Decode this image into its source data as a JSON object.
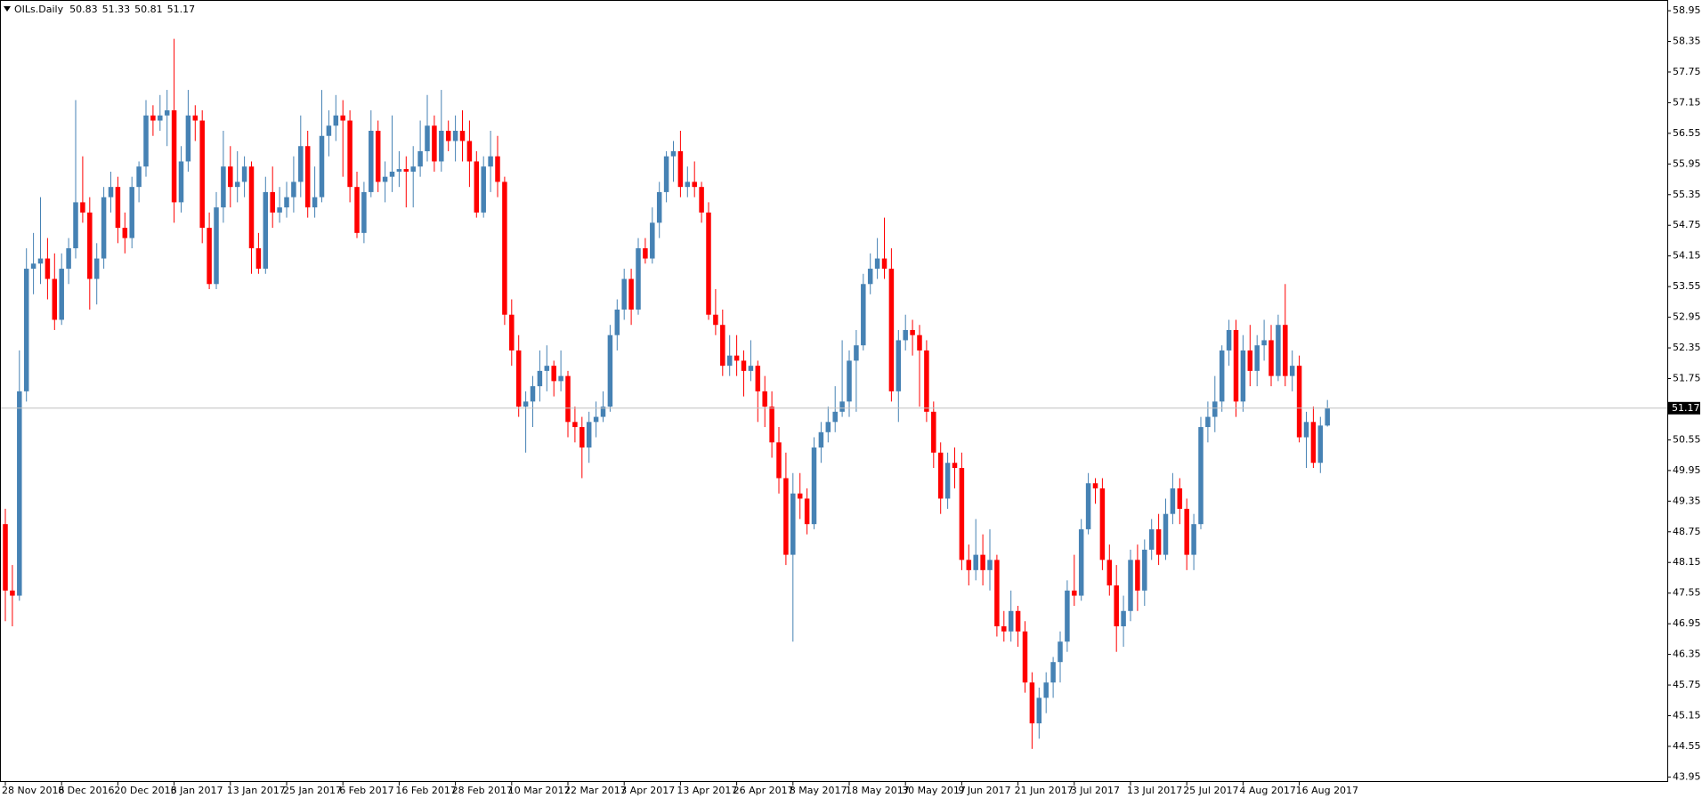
{
  "chart_data": {
    "type": "candlestick",
    "symbol": "OILs.Daily",
    "up_color": "#4682b4",
    "down_color": "#ff0000",
    "current_line_color": "#c0c0c0",
    "ylim": [
      43.87,
      59.16
    ],
    "yticks": [
      43.95,
      44.55,
      45.15,
      45.75,
      46.35,
      46.95,
      47.55,
      48.15,
      48.75,
      49.35,
      49.95,
      50.55,
      51.75,
      52.35,
      52.95,
      53.55,
      54.15,
      54.75,
      55.35,
      55.95,
      56.55,
      57.15,
      57.75,
      58.35,
      58.95
    ],
    "categories": [
      "28 Nov 2016",
      null,
      null,
      null,
      null,
      null,
      null,
      null,
      "8 Dec 2016",
      null,
      null,
      null,
      null,
      null,
      null,
      null,
      "20 Dec 2016",
      null,
      null,
      null,
      null,
      null,
      null,
      null,
      "3 Jan 2017",
      null,
      null,
      null,
      null,
      null,
      null,
      null,
      "13 Jan 2017",
      null,
      null,
      null,
      null,
      null,
      null,
      null,
      "25 Jan 2017",
      null,
      null,
      null,
      null,
      null,
      null,
      null,
      "6 Feb 2017",
      null,
      null,
      null,
      null,
      null,
      null,
      null,
      "16 Feb 2017",
      null,
      null,
      null,
      null,
      null,
      null,
      null,
      "28 Feb 2017",
      null,
      null,
      null,
      null,
      null,
      null,
      null,
      "10 Mar 2017",
      null,
      null,
      null,
      null,
      null,
      null,
      null,
      "22 Mar 2017",
      null,
      null,
      null,
      null,
      null,
      null,
      null,
      "3 Apr 2017",
      null,
      null,
      null,
      null,
      null,
      null,
      null,
      "13 Apr 2017",
      null,
      null,
      null,
      null,
      null,
      null,
      null,
      "26 Apr 2017",
      null,
      null,
      null,
      null,
      null,
      null,
      null,
      "8 May 2017",
      null,
      null,
      null,
      null,
      null,
      null,
      null,
      "18 May 2017",
      null,
      null,
      null,
      null,
      null,
      null,
      null,
      "30 May 2017",
      null,
      null,
      null,
      null,
      null,
      null,
      null,
      "9 Jun 2017",
      null,
      null,
      null,
      null,
      null,
      null,
      null,
      "21 Jun 2017",
      null,
      null,
      null,
      null,
      null,
      null,
      null,
      "3 Jul 2017",
      null,
      null,
      null,
      null,
      null,
      null,
      null,
      "13 Jul 2017",
      null,
      null,
      null,
      null,
      null,
      null,
      null,
      "25 Jul 2017",
      null,
      null,
      null,
      null,
      null,
      null,
      null,
      "4 Aug 2017",
      null,
      null,
      null,
      null,
      null,
      null,
      null,
      "16 Aug 2017",
      null,
      null,
      null,
      null
    ],
    "ohlc": [
      [
        48.9,
        49.2,
        47.0,
        47.6
      ],
      [
        47.6,
        48.1,
        46.9,
        47.5
      ],
      [
        47.5,
        52.3,
        47.4,
        51.5
      ],
      [
        51.5,
        54.3,
        51.3,
        53.9
      ],
      [
        53.9,
        54.6,
        53.4,
        54.0
      ],
      [
        54.0,
        55.3,
        53.6,
        54.1
      ],
      [
        54.1,
        54.5,
        53.3,
        53.7
      ],
      [
        53.7,
        54.2,
        52.7,
        52.9
      ],
      [
        52.9,
        54.2,
        52.8,
        53.9
      ],
      [
        53.9,
        54.5,
        53.6,
        54.3
      ],
      [
        54.3,
        57.2,
        54.1,
        55.2
      ],
      [
        55.2,
        56.1,
        54.8,
        55.0
      ],
      [
        55.0,
        55.3,
        53.1,
        53.7
      ],
      [
        53.7,
        54.4,
        53.2,
        54.1
      ],
      [
        54.1,
        55.5,
        53.9,
        55.3
      ],
      [
        55.3,
        55.8,
        55.0,
        55.5
      ],
      [
        55.5,
        55.7,
        54.4,
        54.7
      ],
      [
        54.7,
        55.0,
        54.2,
        54.5
      ],
      [
        54.5,
        55.7,
        54.3,
        55.5
      ],
      [
        55.5,
        56.0,
        55.2,
        55.9
      ],
      [
        55.9,
        57.2,
        55.7,
        56.9
      ],
      [
        56.9,
        57.1,
        56.5,
        56.8
      ],
      [
        56.8,
        57.3,
        56.6,
        56.9
      ],
      [
        56.9,
        57.4,
        56.3,
        57.0
      ],
      [
        57.0,
        58.4,
        54.8,
        55.2
      ],
      [
        55.2,
        56.3,
        55.0,
        56.0
      ],
      [
        56.0,
        57.4,
        55.8,
        56.9
      ],
      [
        56.9,
        57.1,
        56.4,
        56.8
      ],
      [
        56.8,
        57.0,
        54.4,
        54.7
      ],
      [
        54.7,
        55.0,
        53.5,
        53.6
      ],
      [
        53.6,
        55.4,
        53.5,
        55.1
      ],
      [
        55.1,
        56.6,
        54.8,
        55.9
      ],
      [
        55.9,
        56.3,
        55.1,
        55.5
      ],
      [
        55.5,
        56.2,
        55.2,
        55.6
      ],
      [
        55.6,
        56.1,
        55.3,
        55.9
      ],
      [
        55.9,
        56.0,
        53.8,
        54.3
      ],
      [
        54.3,
        54.6,
        53.8,
        53.9
      ],
      [
        53.9,
        55.7,
        53.8,
        55.4
      ],
      [
        55.4,
        55.9,
        54.7,
        55.0
      ],
      [
        55.0,
        55.5,
        54.8,
        55.1
      ],
      [
        55.1,
        55.6,
        54.9,
        55.3
      ],
      [
        55.3,
        56.1,
        55.0,
        55.6
      ],
      [
        55.6,
        56.9,
        55.3,
        56.3
      ],
      [
        56.3,
        56.6,
        54.9,
        55.1
      ],
      [
        55.1,
        55.9,
        54.9,
        55.3
      ],
      [
        55.3,
        57.4,
        55.2,
        56.5
      ],
      [
        56.5,
        57.0,
        56.1,
        56.7
      ],
      [
        56.7,
        57.3,
        56.4,
        56.9
      ],
      [
        56.9,
        57.2,
        55.7,
        56.8
      ],
      [
        56.8,
        57.0,
        55.2,
        55.5
      ],
      [
        55.5,
        55.8,
        54.5,
        54.6
      ],
      [
        54.6,
        55.6,
        54.4,
        55.4
      ],
      [
        55.4,
        57.0,
        55.3,
        56.6
      ],
      [
        56.6,
        56.8,
        55.4,
        55.6
      ],
      [
        55.6,
        56.0,
        55.2,
        55.7
      ],
      [
        55.7,
        56.9,
        55.4,
        55.8
      ],
      [
        55.8,
        56.2,
        55.5,
        55.85
      ],
      [
        55.85,
        56.1,
        55.1,
        55.8
      ],
      [
        55.8,
        56.3,
        55.1,
        55.9
      ],
      [
        55.9,
        56.8,
        55.7,
        56.2
      ],
      [
        56.2,
        57.3,
        56.0,
        56.7
      ],
      [
        56.7,
        56.9,
        55.8,
        56.0
      ],
      [
        56.0,
        57.4,
        55.8,
        56.6
      ],
      [
        56.6,
        56.8,
        56.2,
        56.4
      ],
      [
        56.4,
        56.9,
        56.0,
        56.6
      ],
      [
        56.6,
        57.0,
        56.0,
        56.4
      ],
      [
        56.4,
        56.8,
        55.5,
        56.0
      ],
      [
        56.0,
        56.2,
        54.9,
        55.0
      ],
      [
        55.0,
        56.1,
        54.9,
        55.9
      ],
      [
        55.9,
        56.6,
        55.4,
        56.1
      ],
      [
        56.1,
        56.5,
        55.3,
        55.6
      ],
      [
        55.6,
        55.7,
        52.8,
        53.0
      ],
      [
        53.0,
        53.3,
        52.0,
        52.3
      ],
      [
        52.3,
        52.6,
        51.0,
        51.2
      ],
      [
        51.2,
        51.5,
        50.3,
        51.3
      ],
      [
        51.3,
        51.8,
        50.8,
        51.6
      ],
      [
        51.6,
        52.3,
        51.3,
        51.9
      ],
      [
        51.9,
        52.4,
        51.5,
        52.0
      ],
      [
        52.0,
        52.1,
        51.4,
        51.7
      ],
      [
        51.7,
        52.3,
        51.5,
        51.8
      ],
      [
        51.8,
        51.9,
        50.6,
        50.9
      ],
      [
        50.9,
        51.2,
        50.5,
        50.8
      ],
      [
        50.8,
        51.0,
        49.8,
        50.4
      ],
      [
        50.4,
        51.1,
        50.1,
        50.9
      ],
      [
        50.9,
        51.3,
        50.6,
        51.0
      ],
      [
        51.0,
        51.5,
        50.9,
        51.2
      ],
      [
        51.2,
        52.8,
        51.1,
        52.6
      ],
      [
        52.6,
        53.3,
        52.3,
        53.1
      ],
      [
        53.1,
        53.9,
        52.9,
        53.7
      ],
      [
        53.7,
        53.9,
        52.8,
        53.1
      ],
      [
        53.1,
        54.5,
        53.0,
        54.3
      ],
      [
        54.3,
        54.5,
        54.0,
        54.1
      ],
      [
        54.1,
        55.1,
        54.0,
        54.8
      ],
      [
        54.8,
        55.6,
        54.5,
        55.4
      ],
      [
        55.4,
        56.2,
        55.2,
        56.1
      ],
      [
        56.1,
        56.4,
        55.6,
        56.2
      ],
      [
        56.2,
        56.6,
        55.3,
        55.5
      ],
      [
        55.5,
        55.9,
        55.3,
        55.6
      ],
      [
        55.6,
        56.0,
        55.3,
        55.5
      ],
      [
        55.5,
        55.6,
        54.8,
        55.0
      ],
      [
        55.0,
        55.2,
        52.9,
        53.0
      ],
      [
        53.0,
        53.5,
        52.6,
        52.8
      ],
      [
        52.8,
        53.1,
        51.8,
        52.0
      ],
      [
        52.0,
        52.6,
        51.8,
        52.2
      ],
      [
        52.2,
        52.6,
        51.8,
        52.1
      ],
      [
        52.1,
        52.3,
        51.4,
        51.9
      ],
      [
        51.9,
        52.5,
        51.7,
        52.0
      ],
      [
        52.0,
        52.1,
        50.9,
        51.5
      ],
      [
        51.5,
        51.8,
        50.8,
        51.2
      ],
      [
        51.2,
        51.5,
        50.2,
        50.5
      ],
      [
        50.5,
        50.8,
        49.5,
        49.8
      ],
      [
        49.8,
        50.3,
        48.1,
        48.3
      ],
      [
        48.3,
        49.9,
        46.6,
        49.5
      ],
      [
        49.5,
        49.9,
        49.0,
        49.4
      ],
      [
        49.4,
        49.6,
        48.7,
        48.9
      ],
      [
        48.9,
        50.6,
        48.8,
        50.4
      ],
      [
        50.4,
        50.9,
        50.1,
        50.7
      ],
      [
        50.7,
        51.2,
        50.5,
        50.9
      ],
      [
        50.9,
        51.6,
        50.7,
        51.1
      ],
      [
        51.1,
        52.5,
        51.0,
        51.3
      ],
      [
        51.3,
        52.3,
        51.0,
        52.1
      ],
      [
        52.1,
        52.7,
        51.1,
        52.4
      ],
      [
        52.4,
        53.8,
        52.3,
        53.6
      ],
      [
        53.6,
        54.2,
        53.4,
        53.9
      ],
      [
        53.9,
        54.5,
        53.7,
        54.1
      ],
      [
        54.1,
        54.9,
        53.7,
        53.9
      ],
      [
        53.9,
        54.3,
        51.3,
        51.5
      ],
      [
        51.5,
        52.7,
        50.9,
        52.5
      ],
      [
        52.5,
        53.0,
        52.3,
        52.7
      ],
      [
        52.7,
        52.9,
        52.2,
        52.6
      ],
      [
        52.6,
        52.8,
        51.2,
        52.3
      ],
      [
        52.3,
        52.5,
        50.9,
        51.1
      ],
      [
        51.1,
        51.3,
        50.0,
        50.3
      ],
      [
        50.3,
        50.5,
        49.1,
        49.4
      ],
      [
        49.4,
        50.3,
        49.2,
        50.1
      ],
      [
        50.1,
        50.4,
        49.6,
        50.0
      ],
      [
        50.0,
        50.3,
        48.0,
        48.2
      ],
      [
        48.2,
        48.5,
        47.7,
        48.0
      ],
      [
        48.0,
        49.0,
        47.8,
        48.3
      ],
      [
        48.3,
        48.7,
        47.7,
        48.0
      ],
      [
        48.0,
        48.8,
        47.6,
        48.2
      ],
      [
        48.2,
        48.3,
        46.7,
        46.9
      ],
      [
        46.9,
        47.2,
        46.6,
        46.8
      ],
      [
        46.8,
        47.6,
        46.6,
        47.2
      ],
      [
        47.2,
        47.3,
        46.5,
        46.8
      ],
      [
        46.8,
        47.0,
        45.6,
        45.8
      ],
      [
        45.8,
        46.0,
        44.5,
        45.0
      ],
      [
        45.0,
        45.7,
        44.7,
        45.5
      ],
      [
        45.5,
        46.0,
        45.2,
        45.8
      ],
      [
        45.8,
        46.3,
        45.5,
        46.2
      ],
      [
        46.2,
        46.8,
        45.8,
        46.6
      ],
      [
        46.6,
        47.8,
        46.4,
        47.6
      ],
      [
        47.6,
        48.3,
        47.3,
        47.5
      ],
      [
        47.5,
        49.0,
        47.4,
        48.8
      ],
      [
        48.8,
        49.9,
        48.7,
        49.7
      ],
      [
        49.7,
        49.8,
        49.3,
        49.6
      ],
      [
        49.6,
        49.8,
        48.0,
        48.2
      ],
      [
        48.2,
        48.5,
        47.5,
        47.7
      ],
      [
        47.7,
        48.1,
        46.4,
        46.9
      ],
      [
        46.9,
        47.5,
        46.5,
        47.2
      ],
      [
        47.2,
        48.4,
        47.0,
        48.2
      ],
      [
        48.2,
        48.5,
        47.2,
        47.6
      ],
      [
        47.6,
        48.6,
        47.3,
        48.4
      ],
      [
        48.4,
        49.0,
        48.2,
        48.8
      ],
      [
        48.8,
        49.1,
        48.1,
        48.3
      ],
      [
        48.3,
        49.4,
        48.2,
        49.1
      ],
      [
        49.1,
        49.9,
        48.9,
        49.6
      ],
      [
        49.6,
        49.8,
        48.9,
        49.2
      ],
      [
        49.2,
        49.4,
        48.0,
        48.3
      ],
      [
        48.3,
        49.1,
        48.0,
        48.9
      ],
      [
        48.9,
        51.0,
        48.8,
        50.8
      ],
      [
        50.8,
        51.3,
        50.5,
        51.0
      ],
      [
        51.0,
        51.8,
        50.7,
        51.3
      ],
      [
        51.3,
        52.4,
        51.1,
        52.3
      ],
      [
        52.3,
        52.9,
        52.0,
        52.7
      ],
      [
        52.7,
        52.9,
        51.0,
        51.3
      ],
      [
        51.3,
        52.6,
        51.1,
        52.3
      ],
      [
        52.3,
        52.8,
        51.6,
        51.9
      ],
      [
        51.9,
        52.6,
        51.6,
        52.4
      ],
      [
        52.4,
        52.9,
        52.1,
        52.5
      ],
      [
        52.5,
        52.8,
        51.6,
        51.8
      ],
      [
        51.8,
        53.0,
        51.7,
        52.8
      ],
      [
        52.8,
        53.6,
        51.6,
        51.8
      ],
      [
        51.8,
        52.3,
        51.5,
        52.0
      ],
      [
        52.0,
        52.2,
        50.5,
        50.6
      ],
      [
        50.6,
        51.1,
        50.0,
        50.9
      ],
      [
        50.9,
        51.2,
        50.0,
        50.1
      ],
      [
        50.1,
        51.0,
        49.9,
        50.83
      ],
      [
        50.83,
        51.33,
        50.81,
        51.17
      ]
    ]
  }
}
